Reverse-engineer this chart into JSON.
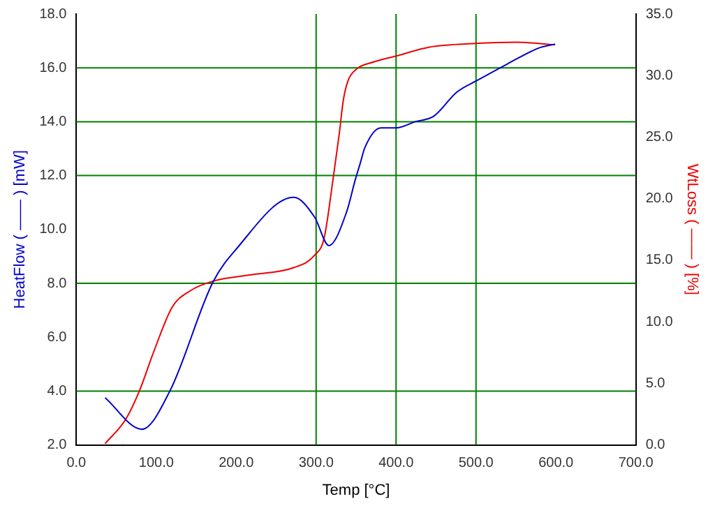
{
  "chart_data": {
    "type": "line",
    "xlabel": "Temp [°C]",
    "ylabel": "HeatFlow ( —— ) [mW]",
    "y2label": "WtLoss ( —— ) [%]",
    "xlim": [
      0,
      700
    ],
    "xticks": [
      {
        "value": 0,
        "label": "0.0"
      },
      {
        "value": 100,
        "label": "100.0"
      },
      {
        "value": 200,
        "label": "200.0"
      },
      {
        "value": 300,
        "label": "300.0"
      },
      {
        "value": 400,
        "label": "400.0"
      },
      {
        "value": 500,
        "label": "500.0"
      },
      {
        "value": 600,
        "label": "600.0"
      },
      {
        "value": 700,
        "label": "700.0"
      }
    ],
    "ylim": [
      2,
      18
    ],
    "yticks": [
      {
        "value": 2,
        "label": "2.0"
      },
      {
        "value": 4,
        "label": "4.0"
      },
      {
        "value": 6,
        "label": "6.0"
      },
      {
        "value": 8,
        "label": "8.0"
      },
      {
        "value": 10,
        "label": "10.0"
      },
      {
        "value": 12,
        "label": "12.0"
      },
      {
        "value": 14,
        "label": "14.0"
      },
      {
        "value": 16,
        "label": "16.0"
      },
      {
        "value": 18,
        "label": "18.0"
      }
    ],
    "y2lim": [
      0,
      35
    ],
    "y2ticks": [
      {
        "value": 0,
        "label": "0.0"
      },
      {
        "value": 5,
        "label": "5.0"
      },
      {
        "value": 10,
        "label": "10.0"
      },
      {
        "value": 15,
        "label": "15.0"
      },
      {
        "value": 20,
        "label": "20.0"
      },
      {
        "value": 25,
        "label": "25.0"
      },
      {
        "value": 30,
        "label": "30.0"
      },
      {
        "value": 35,
        "label": "35.0"
      }
    ],
    "ref_lines": [
      {
        "axis": "y",
        "value": 4,
        "color": "#008000"
      },
      {
        "axis": "y",
        "value": 8,
        "color": "#008000"
      },
      {
        "axis": "y",
        "value": 12,
        "color": "#008000"
      },
      {
        "axis": "y",
        "value": 14,
        "color": "#008000"
      },
      {
        "axis": "y",
        "value": 16,
        "color": "#008000"
      },
      {
        "axis": "x",
        "value": 300,
        "color": "#008000"
      },
      {
        "axis": "x",
        "value": 400,
        "color": "#008000"
      },
      {
        "axis": "x",
        "value": 500,
        "color": "#008000"
      }
    ],
    "series": [
      {
        "color": "#0000cc",
        "x": [
          36,
          82,
          117,
          171,
          200,
          272,
          298,
          316,
          338,
          349,
          355,
          361,
          381,
          400,
          424,
          447,
          476,
          502,
          539,
          579,
          599
        ],
        "values": [
          3.75,
          2.58,
          4.0,
          8.05,
          9.27,
          11.19,
          10.46,
          9.4,
          10.64,
          11.85,
          12.44,
          13.04,
          13.77,
          13.77,
          14.0,
          14.2,
          15.1,
          15.54,
          16.14,
          16.74,
          16.88
        ]
      },
      {
        "color": "#ee0000",
        "axis": "y2",
        "x": [
          36,
          62,
          79,
          97,
          120,
          142,
          171,
          217,
          272,
          298,
          310,
          321,
          329,
          334,
          340,
          350,
          372,
          401,
          441,
          499,
          550,
          599
        ],
        "values": [
          0.1,
          2.1,
          4.4,
          7.6,
          11.2,
          12.5,
          13.3,
          13.8,
          14.4,
          15.4,
          16.8,
          21.5,
          25.3,
          28,
          29.6,
          30.5,
          31.1,
          31.6,
          32.3,
          32.6,
          32.7,
          32.5
        ]
      }
    ]
  }
}
